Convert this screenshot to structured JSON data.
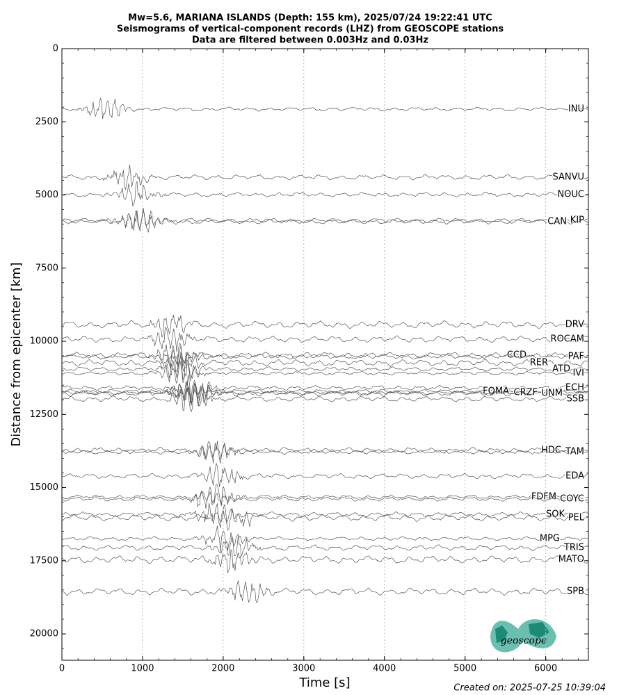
{
  "chart_data": {
    "type": "seismogram",
    "title": "Mw=5.6, MARIANA ISLANDS (Depth: 155 km), 2025/07/24 19:22:41 UTC",
    "subtitle": "Seismograms of vertical-component records (LHZ) from GEOSCOPE stations",
    "filter_note": "Data are filtered between 0.003Hz and 0.03Hz",
    "x_label": "Time [s]",
    "y_label": "Distance from epicenter [km]",
    "created": "Created on: 2025-07-25 10:39:04",
    "logo_text": "geoscope",
    "xlim": [
      0,
      6530
    ],
    "xticks": [
      0,
      1000,
      2000,
      3000,
      4000,
      5000,
      6000
    ],
    "ylim": [
      20900,
      0
    ],
    "yticks": [
      0,
      2500,
      5000,
      7500,
      10000,
      12500,
      15000,
      17500,
      20000
    ],
    "grid": true,
    "color": "#555555",
    "stations": [
      "INU",
      "SANVU",
      "NOUC",
      "KIP",
      "CAN",
      "DRV",
      "ROCAM",
      "CCD",
      "PAF",
      "RER",
      "ATD",
      "IVI",
      "ECH",
      "FOMA",
      "CRZF",
      "UNM",
      "SSB",
      "HDC",
      "TAM",
      "EDA",
      "FDFM",
      "COYC",
      "SOK",
      "PEL",
      "MPG",
      "TRIS",
      "MATO",
      "SPB"
    ],
    "distances": [
      2066,
      4394,
      4988,
      5867,
      5914,
      9430,
      9929,
      10475,
      10523,
      10736,
      10950,
      11093,
      11591,
      11710,
      11758,
      11781,
      11971,
      13729,
      13777,
      14608,
      15321,
      15392,
      15914,
      16033,
      16746,
      17055,
      17458,
      18551
    ]
  }
}
